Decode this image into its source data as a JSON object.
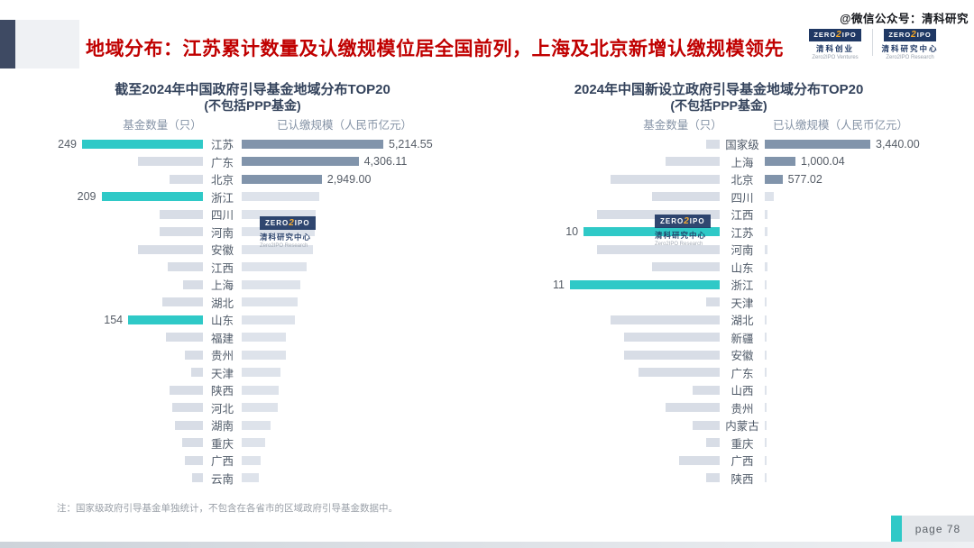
{
  "page": {
    "title": "地域分布：江苏累计数量及认缴规模位居全国前列，上海及北京新增认缴规模领先",
    "watermark_handle": "@微信公众号：清科研究",
    "note": "注：国家级政府引导基金单独统计，不包含在各省市的区域政府引导基金数据中。",
    "page_label": "page 78"
  },
  "logos": {
    "ventures": {
      "zero": "ZERO",
      "two": "2",
      "ipo": "IPO",
      "cn": "清科创业",
      "en": "Zero2IPO Ventures"
    },
    "research": {
      "zero": "ZERO",
      "two": "2",
      "ipo": "IPO",
      "cn": "清科研究中心",
      "en": "Zero2IPO Research"
    }
  },
  "colors": {
    "title_red": "#C00000",
    "navy_text": "#33425B",
    "accent_teal": "#2FC9C7",
    "bar_gray": "#D8DDE6",
    "bar_light": "#DEE3EB",
    "bar_dark_slate": "#8194AB",
    "logo_navy": "#1F3864",
    "logo_orange": "#F5A623"
  },
  "chart_data": [
    {
      "type": "bar",
      "orientation": "horizontal-mirrored",
      "title": "截至2024年中国政府引导基金地域分布TOP20",
      "subtitle": "(不包括PPP基金)",
      "series": [
        {
          "name": "基金数量（只）"
        },
        {
          "name": "已认缴规模（人民币亿元）"
        }
      ],
      "count_axis_max": 249,
      "scale_axis_max": 5214.55,
      "rows": [
        {
          "region": "江苏",
          "count": 249,
          "count_label": "249",
          "count_style": "highlight",
          "scale": 5214.55,
          "scale_label": "5,214.55",
          "scale_style": "dark"
        },
        {
          "region": "广东",
          "count": 134,
          "count_label": null,
          "count_style": "normal",
          "scale": 4306.11,
          "scale_label": "4,306.11",
          "scale_style": "dark"
        },
        {
          "region": "北京",
          "count": 69,
          "count_label": null,
          "count_style": "normal",
          "scale": 2949.0,
          "scale_label": "2,949.00",
          "scale_style": "dark"
        },
        {
          "region": "浙江",
          "count": 209,
          "count_label": "209",
          "count_style": "highlight",
          "scale": 2860,
          "scale_label": null,
          "scale_style": "light"
        },
        {
          "region": "四川",
          "count": 89,
          "count_label": null,
          "count_style": "normal",
          "scale": 2720,
          "scale_label": null,
          "scale_style": "light"
        },
        {
          "region": "河南",
          "count": 89,
          "count_label": null,
          "count_style": "normal",
          "scale": 2700,
          "scale_label": null,
          "scale_style": "light"
        },
        {
          "region": "安徽",
          "count": 134,
          "count_label": null,
          "count_style": "normal",
          "scale": 2620,
          "scale_label": null,
          "scale_style": "light"
        },
        {
          "region": "江西",
          "count": 73,
          "count_label": null,
          "count_style": "normal",
          "scale": 2390,
          "scale_label": null,
          "scale_style": "light"
        },
        {
          "region": "上海",
          "count": 41,
          "count_label": null,
          "count_style": "normal",
          "scale": 2160,
          "scale_label": null,
          "scale_style": "light"
        },
        {
          "region": "湖北",
          "count": 84,
          "count_label": null,
          "count_style": "normal",
          "scale": 2060,
          "scale_label": null,
          "scale_style": "light"
        },
        {
          "region": "山东",
          "count": 154,
          "count_label": "154",
          "count_style": "highlight",
          "scale": 1960,
          "scale_label": null,
          "scale_style": "light"
        },
        {
          "region": "福建",
          "count": 76,
          "count_label": null,
          "count_style": "normal",
          "scale": 1630,
          "scale_label": null,
          "scale_style": "light"
        },
        {
          "region": "贵州",
          "count": 37,
          "count_label": null,
          "count_style": "normal",
          "scale": 1630,
          "scale_label": null,
          "scale_style": "light"
        },
        {
          "region": "天津",
          "count": 24,
          "count_label": null,
          "count_style": "normal",
          "scale": 1430,
          "scale_label": null,
          "scale_style": "light"
        },
        {
          "region": "陕西",
          "count": 68,
          "count_label": null,
          "count_style": "normal",
          "scale": 1360,
          "scale_label": null,
          "scale_style": "light"
        },
        {
          "region": "河北",
          "count": 63,
          "count_label": null,
          "count_style": "normal",
          "scale": 1330,
          "scale_label": null,
          "scale_style": "light"
        },
        {
          "region": "湖南",
          "count": 58,
          "count_label": null,
          "count_style": "normal",
          "scale": 1060,
          "scale_label": null,
          "scale_style": "light"
        },
        {
          "region": "重庆",
          "count": 43,
          "count_label": null,
          "count_style": "normal",
          "scale": 860,
          "scale_label": null,
          "scale_style": "light"
        },
        {
          "region": "广西",
          "count": 37,
          "count_label": null,
          "count_style": "normal",
          "scale": 700,
          "scale_label": null,
          "scale_style": "light"
        },
        {
          "region": "云南",
          "count": 22,
          "count_label": null,
          "count_style": "normal",
          "scale": 630,
          "scale_label": null,
          "scale_style": "light"
        }
      ]
    },
    {
      "type": "bar",
      "orientation": "horizontal-mirrored",
      "title": "2024年中国新设立政府引导基金地域分布TOP20",
      "subtitle": "(不包括PPP基金)",
      "series": [
        {
          "name": "基金数量（只）"
        },
        {
          "name": "已认缴规模（人民币亿元）"
        }
      ],
      "count_axis_max": 11,
      "scale_axis_max": 3440,
      "rows": [
        {
          "region": "国家级",
          "count": 1,
          "count_label": null,
          "count_style": "normal",
          "scale": 3440.0,
          "scale_label": "3,440.00",
          "scale_style": "dark"
        },
        {
          "region": "上海",
          "count": 4,
          "count_label": null,
          "count_style": "normal",
          "scale": 1000.04,
          "scale_label": "1,000.04",
          "scale_style": "dark"
        },
        {
          "region": "北京",
          "count": 8,
          "count_label": null,
          "count_style": "normal",
          "scale": 577.02,
          "scale_label": "577.02",
          "scale_style": "dark"
        },
        {
          "region": "四川",
          "count": 5,
          "count_label": null,
          "count_style": "normal",
          "scale": 290,
          "scale_label": null,
          "scale_style": "light"
        },
        {
          "region": "江西",
          "count": 9,
          "count_label": null,
          "count_style": "normal",
          "scale": 100,
          "scale_label": null,
          "scale_style": "light"
        },
        {
          "region": "江苏",
          "count": 10,
          "count_label": "10",
          "count_style": "highlight",
          "scale": 95,
          "scale_label": null,
          "scale_style": "light"
        },
        {
          "region": "河南",
          "count": 9,
          "count_label": null,
          "count_style": "normal",
          "scale": 85,
          "scale_label": null,
          "scale_style": "light"
        },
        {
          "region": "山东",
          "count": 5,
          "count_label": null,
          "count_style": "normal",
          "scale": 75,
          "scale_label": null,
          "scale_style": "light"
        },
        {
          "region": "浙江",
          "count": 11,
          "count_label": "11",
          "count_style": "highlight",
          "scale": 70,
          "scale_label": null,
          "scale_style": "light"
        },
        {
          "region": "天津",
          "count": 1,
          "count_label": null,
          "count_style": "normal",
          "scale": 65,
          "scale_label": null,
          "scale_style": "light"
        },
        {
          "region": "湖北",
          "count": 8,
          "count_label": null,
          "count_style": "normal",
          "scale": 60,
          "scale_label": null,
          "scale_style": "light"
        },
        {
          "region": "新疆",
          "count": 7,
          "count_label": null,
          "count_style": "normal",
          "scale": 55,
          "scale_label": null,
          "scale_style": "light"
        },
        {
          "region": "安徽",
          "count": 7,
          "count_label": null,
          "count_style": "normal",
          "scale": 55,
          "scale_label": null,
          "scale_style": "light"
        },
        {
          "region": "广东",
          "count": 6,
          "count_label": null,
          "count_style": "normal",
          "scale": 50,
          "scale_label": null,
          "scale_style": "light"
        },
        {
          "region": "山西",
          "count": 2,
          "count_label": null,
          "count_style": "normal",
          "scale": 45,
          "scale_label": null,
          "scale_style": "light"
        },
        {
          "region": "贵州",
          "count": 4,
          "count_label": null,
          "count_style": "normal",
          "scale": 45,
          "scale_label": null,
          "scale_style": "light"
        },
        {
          "region": "内蒙古",
          "count": 2,
          "count_label": null,
          "count_style": "normal",
          "scale": 40,
          "scale_label": null,
          "scale_style": "light"
        },
        {
          "region": "重庆",
          "count": 1,
          "count_label": null,
          "count_style": "normal",
          "scale": 35,
          "scale_label": null,
          "scale_style": "light"
        },
        {
          "region": "广西",
          "count": 3,
          "count_label": null,
          "count_style": "normal",
          "scale": 35,
          "scale_label": null,
          "scale_style": "light"
        },
        {
          "region": "陕西",
          "count": 1,
          "count_label": null,
          "count_style": "normal",
          "scale": 30,
          "scale_label": null,
          "scale_style": "light"
        }
      ]
    }
  ]
}
